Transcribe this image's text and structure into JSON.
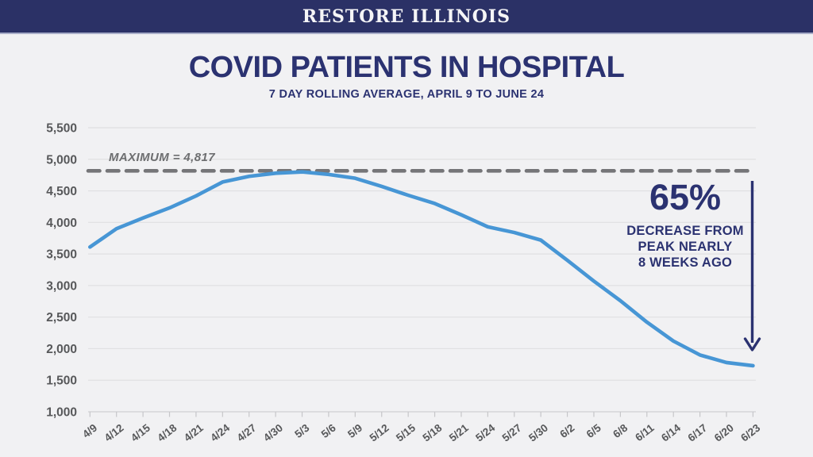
{
  "header": {
    "brand": "RESTORE ILLINOIS"
  },
  "chart_header": {
    "title": "COVID PATIENTS IN HOSPITAL",
    "subtitle": "7 DAY ROLLING AVERAGE, APRIL 9 TO JUNE 24"
  },
  "annotations": {
    "maximum_label": "MAXIMUM = 4,817",
    "percent": "65%",
    "caption_lines": [
      "DECREASE FROM",
      "PEAK NEARLY",
      "8 WEEKS AGO"
    ]
  },
  "colors": {
    "header_bg": "#2b3166",
    "header_border": "#a8adc8",
    "header_text": "#f5f5f7",
    "accent_navy": "#2b3271",
    "line_blue": "#4796d5",
    "dash_gray": "#757578",
    "axis_text": "#57585a",
    "gridline": "#e0e0e2",
    "axis_line": "#d0d0d3",
    "tick_mark": "#c6c6c9",
    "background": "#f1f1f3"
  },
  "chart_data": {
    "type": "line",
    "title": "COVID PATIENTS IN HOSPITAL",
    "subtitle": "7 DAY ROLLING AVERAGE, APRIL 9 TO JUNE 24",
    "x": [
      "4/9",
      "4/12",
      "4/15",
      "4/18",
      "4/21",
      "4/24",
      "4/27",
      "4/30",
      "5/3",
      "5/6",
      "5/9",
      "5/12",
      "5/15",
      "5/18",
      "5/21",
      "5/24",
      "5/27",
      "5/30",
      "6/2",
      "6/5",
      "6/8",
      "6/11",
      "6/14",
      "6/17",
      "6/20",
      "6/23"
    ],
    "series": [
      {
        "name": "COVID patients in hospital (7-day rolling average)",
        "color": "#4796d5",
        "values": [
          3610,
          3900,
          4070,
          4230,
          4420,
          4640,
          4730,
          4780,
          4800,
          4760,
          4700,
          4570,
          4430,
          4300,
          4120,
          3930,
          3840,
          3720,
          3400,
          3070,
          2760,
          2420,
          2120,
          1900,
          1780,
          1730
        ]
      }
    ],
    "ylim": [
      1000,
      5500
    ],
    "ytick_interval": 500,
    "ytick_labels": [
      "5,500",
      "5,000",
      "4,500",
      "4,000",
      "3,500",
      "3,000",
      "2,500",
      "2,000",
      "1,500",
      "1,000"
    ],
    "grid": true,
    "legend": "none",
    "reference_line": {
      "value": 4817,
      "label": "MAXIMUM = 4,817",
      "style": "dashed"
    },
    "callout": {
      "value_text": "65%",
      "lines": [
        "DECREASE FROM",
        "PEAK NEARLY",
        "8 WEEKS AGO"
      ],
      "arrow": "down"
    }
  }
}
